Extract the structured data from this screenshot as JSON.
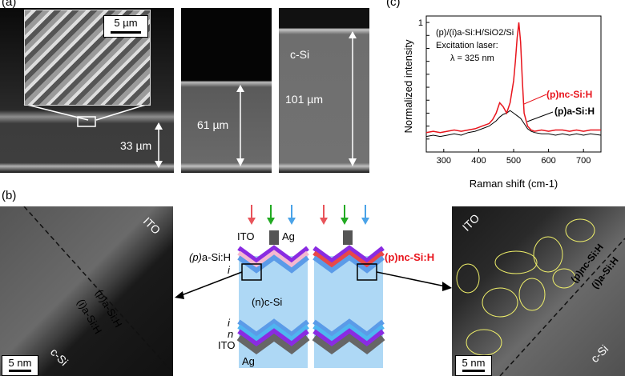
{
  "panels": {
    "a": "(a)",
    "b": "(b)",
    "c": "(c)"
  },
  "sem": {
    "inset_scale": "5 µm",
    "left_thickness": "33 µm",
    "middle_thickness": "61 µm",
    "right_thickness": "101 µm",
    "right_material": "c-Si"
  },
  "diagram": {
    "ito_top": "ITO",
    "ag_top": "Ag",
    "p_asi_label_paren": "(p)",
    "p_asi_label_rest": "a-Si:H",
    "i_top": "i",
    "bulk": "(n)c-Si",
    "i_bottom": "i",
    "n_bottom": "n",
    "ito_bottom": "ITO",
    "ag_bottom": "Ag",
    "pnc_label": "(p)nc-Si:H",
    "arrow_colors": [
      "#e8545a",
      "#22aa22",
      "#4aa3e8"
    ],
    "colors": {
      "bulk": "#aed8f5",
      "i_layer": "#5b9be8",
      "n_layer": "#4fb5f0",
      "p_asi": "#f4b8cf",
      "pnc": "#e84848",
      "ito": "#8a2be2",
      "ag": "#555555"
    }
  },
  "tem": {
    "left_ito": "ITO",
    "left_p": "(p)a-Si:H",
    "left_i": "(i)a-Si:H",
    "left_csi": "c-Si",
    "left_scale": "5 nm",
    "right_ito": "ITO",
    "right_p": "(p)nc-Si:H",
    "right_i": "(i)a-Si:H",
    "right_csi": "c-Si",
    "right_scale": "5 nm"
  },
  "chart_data": {
    "type": "line",
    "xlabel": "Raman shift (cm-1)",
    "ylabel": "Normalized intensity",
    "xlim": [
      250,
      750
    ],
    "ylim": [
      0,
      1.05
    ],
    "xticks": [
      300,
      400,
      500,
      600,
      700
    ],
    "yticks": [
      0.1,
      0.2,
      0.3,
      0.4,
      0.5,
      0.6,
      0.7,
      0.8,
      0.9,
      1
    ],
    "annotation_lines": [
      "(p)/(i)a-Si:H/SiO2/Si",
      "Excitation laser:",
      "λ = 325 nm"
    ],
    "series": [
      {
        "name": "(p)nc-Si:H",
        "color": "#e8141c",
        "x": [
          250,
          270,
          290,
          310,
          330,
          350,
          370,
          390,
          410,
          430,
          440,
          450,
          460,
          470,
          480,
          490,
          500,
          505,
          510,
          515,
          520,
          525,
          530,
          540,
          550,
          560,
          580,
          600,
          620,
          640,
          660,
          680,
          700,
          720,
          750
        ],
        "y": [
          0.15,
          0.16,
          0.15,
          0.16,
          0.17,
          0.16,
          0.17,
          0.18,
          0.2,
          0.22,
          0.25,
          0.3,
          0.38,
          0.35,
          0.3,
          0.38,
          0.55,
          0.7,
          0.88,
          1.0,
          0.85,
          0.55,
          0.3,
          0.2,
          0.17,
          0.16,
          0.17,
          0.16,
          0.17,
          0.17,
          0.16,
          0.17,
          0.16,
          0.17,
          0.17
        ]
      },
      {
        "name": "(p)a-Si:H",
        "color": "#000000",
        "x": [
          250,
          270,
          290,
          310,
          330,
          350,
          370,
          390,
          410,
          430,
          440,
          450,
          460,
          470,
          480,
          490,
          500,
          510,
          520,
          530,
          540,
          550,
          560,
          580,
          600,
          620,
          640,
          660,
          680,
          700,
          720,
          750
        ],
        "y": [
          0.12,
          0.13,
          0.12,
          0.13,
          0.14,
          0.13,
          0.15,
          0.16,
          0.18,
          0.2,
          0.22,
          0.24,
          0.27,
          0.29,
          0.3,
          0.32,
          0.3,
          0.28,
          0.26,
          0.22,
          0.18,
          0.16,
          0.15,
          0.14,
          0.14,
          0.13,
          0.14,
          0.13,
          0.14,
          0.13,
          0.14,
          0.13
        ]
      }
    ]
  }
}
